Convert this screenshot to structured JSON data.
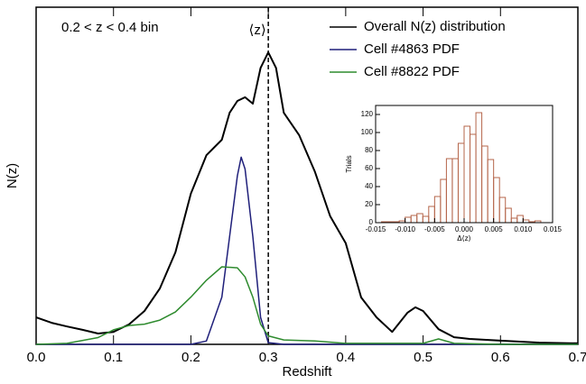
{
  "chart_data": [
    {
      "type": "line",
      "xlabel": "Redshift",
      "ylabel": "N(z)",
      "annotation": "0.2 < z < 0.4 bin",
      "marker_label": "⟨z⟩",
      "marker_x": 0.3,
      "xlim": [
        0,
        0.7
      ],
      "xticks": [
        {
          "value": 0,
          "label": "0.0"
        },
        0.1,
        0.2,
        0.3,
        0.4,
        0.5,
        0.6,
        0.7
      ],
      "ylim": [
        0,
        1
      ],
      "legend": "upper right",
      "series": [
        {
          "name": "Overall N(z) distribution",
          "color": "#000000",
          "x": [
            0,
            0.02,
            0.04,
            0.06,
            0.08,
            0.1,
            0.12,
            0.14,
            0.16,
            0.18,
            0.2,
            0.22,
            0.24,
            0.25,
            0.26,
            0.27,
            0.28,
            0.29,
            0.3,
            0.31,
            0.32,
            0.34,
            0.36,
            0.38,
            0.4,
            0.42,
            0.44,
            0.46,
            0.48,
            0.49,
            0.5,
            0.52,
            0.54,
            0.56,
            0.6,
            0.65,
            0.7
          ],
          "values": [
            0.08,
            0.064,
            0.053,
            0.043,
            0.032,
            0.037,
            0.059,
            0.099,
            0.166,
            0.273,
            0.447,
            0.561,
            0.607,
            0.687,
            0.722,
            0.733,
            0.714,
            0.82,
            0.866,
            0.82,
            0.687,
            0.62,
            0.513,
            0.38,
            0.3,
            0.139,
            0.08,
            0.037,
            0.094,
            0.11,
            0.099,
            0.045,
            0.021,
            0.016,
            0.011,
            0.005,
            0.003
          ]
        },
        {
          "name": "Cell #4863 PDF",
          "color": "#1f1f7a",
          "x": [
            0,
            0.2,
            0.22,
            0.24,
            0.25,
            0.26,
            0.265,
            0.27,
            0.28,
            0.29,
            0.3,
            0.32,
            0.7
          ],
          "values": [
            0,
            0,
            0.01,
            0.14,
            0.32,
            0.5,
            0.555,
            0.52,
            0.32,
            0.08,
            0.005,
            0,
            0
          ]
        },
        {
          "name": "Cell #8822 PDF",
          "color": "#2e8b2e",
          "x": [
            0,
            0.04,
            0.08,
            0.1,
            0.12,
            0.14,
            0.16,
            0.18,
            0.2,
            0.22,
            0.24,
            0.26,
            0.27,
            0.28,
            0.29,
            0.3,
            0.32,
            0.36,
            0.4,
            0.5,
            0.52,
            0.54,
            0.6,
            0.7
          ],
          "values": [
            0,
            0.003,
            0.02,
            0.043,
            0.056,
            0.06,
            0.072,
            0.096,
            0.14,
            0.19,
            0.23,
            0.227,
            0.2,
            0.14,
            0.06,
            0.025,
            0.013,
            0.01,
            0.003,
            0.003,
            0.016,
            0.003,
            0,
            0
          ]
        }
      ]
    },
    {
      "type": "histogram",
      "xlabel": "Δ⟨z⟩",
      "ylabel": "Trials",
      "color": "#b5654a",
      "bins": [
        -0.014,
        -0.013,
        -0.012,
        -0.011,
        -0.01,
        -0.009,
        -0.008,
        -0.007,
        -0.006,
        -0.005,
        -0.004,
        -0.003,
        -0.002,
        -0.001,
        0,
        0.001,
        0.002,
        0.003,
        0.004,
        0.005,
        0.006,
        0.007,
        0.008,
        0.009,
        0.01,
        0.011,
        0.012,
        0.013
      ],
      "values": [
        1,
        1,
        1,
        2,
        6,
        8,
        10,
        7,
        18,
        29,
        48,
        71,
        71,
        88,
        107,
        98,
        122,
        85,
        70,
        50,
        28,
        16,
        5,
        8,
        3,
        1,
        2
      ],
      "xlim": [
        -0.015,
        0.015
      ],
      "xticks": [
        {
          "value": -0.015,
          "label": "-0.015"
        },
        {
          "value": -0.01,
          "label": "-0.010"
        },
        {
          "value": -0.005,
          "label": "-0.005"
        },
        {
          "value": 0,
          "label": "0.000"
        },
        0.005,
        {
          "value": 0.01,
          "label": "0.010"
        },
        0.015
      ],
      "ylim": [
        0,
        130
      ],
      "yticks": [
        0,
        20,
        40,
        60,
        80,
        100,
        120
      ]
    }
  ]
}
